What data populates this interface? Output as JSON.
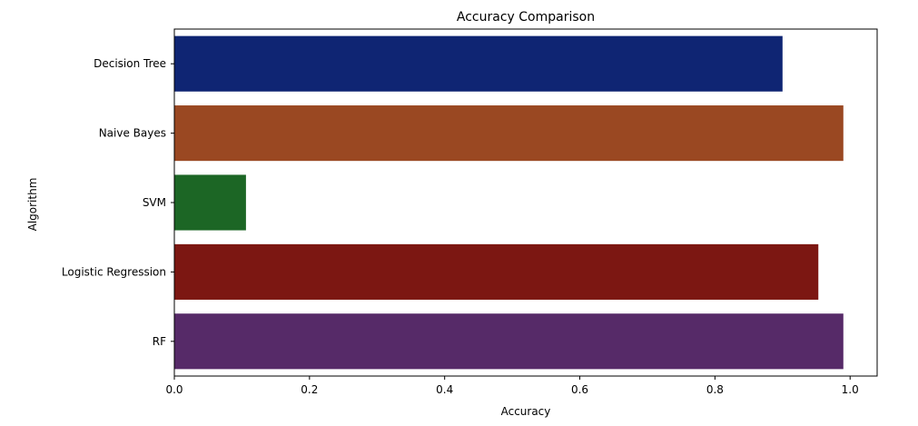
{
  "chart_data": {
    "type": "bar",
    "orientation": "horizontal",
    "title": "Accuracy Comparison",
    "xlabel": "Accuracy",
    "ylabel": "Algorithm",
    "categories": [
      "Decision Tree",
      "Naive Bayes",
      "SVM",
      "Logistic Regression",
      "RF"
    ],
    "values": [
      0.9,
      0.99,
      0.106,
      0.953,
      0.99
    ],
    "colors": [
      "#0f2573",
      "#9a4822",
      "#1c6625",
      "#7c1712",
      "#562a68"
    ],
    "xlim": [
      0,
      1.04
    ],
    "xticks": [
      0.0,
      0.2,
      0.4,
      0.6,
      0.8,
      1.0
    ],
    "xtick_labels": [
      "0.0",
      "0.2",
      "0.4",
      "0.6",
      "0.8",
      "1.0"
    ],
    "grid": false,
    "legend": false
  }
}
